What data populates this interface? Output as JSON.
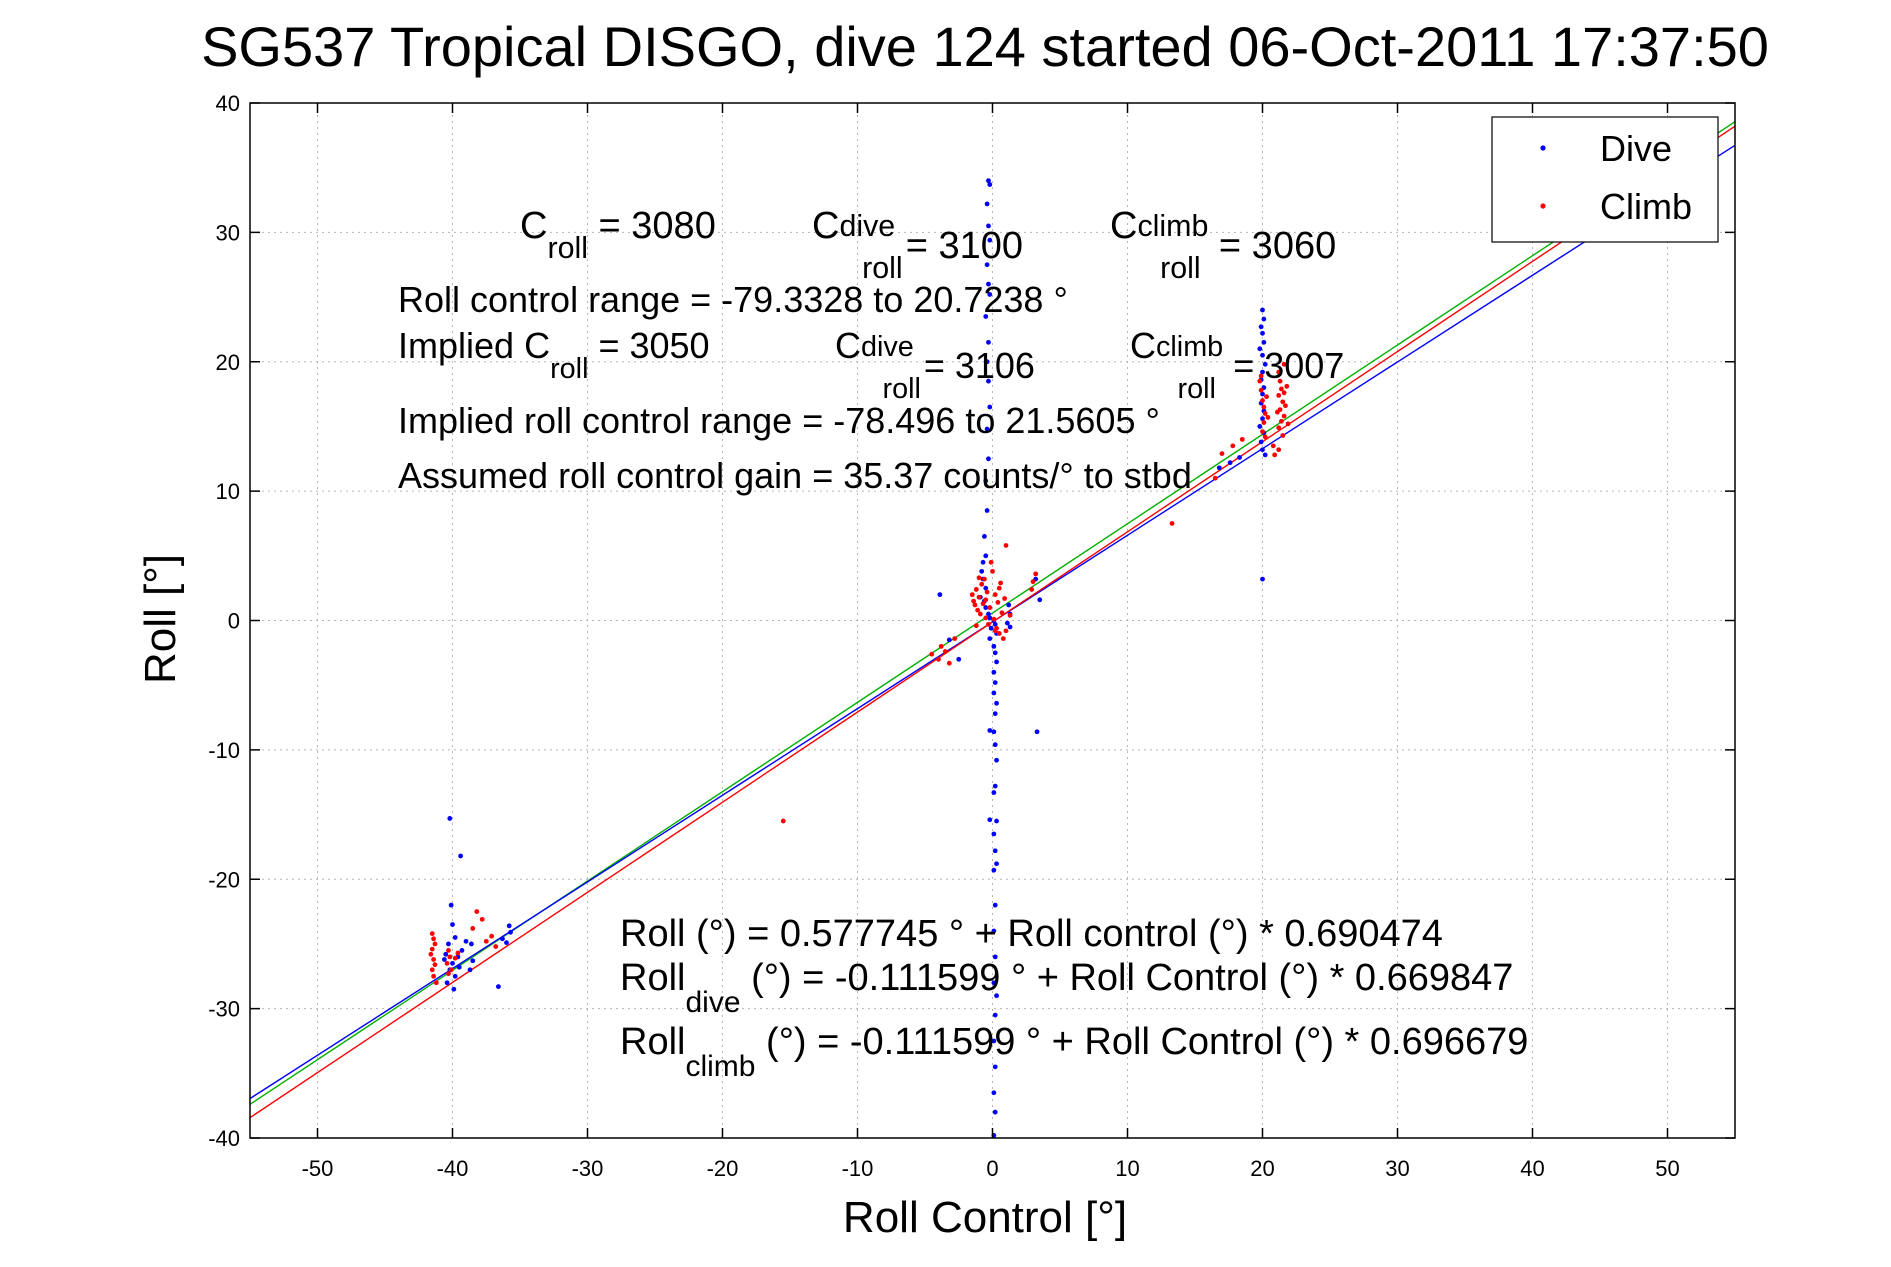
{
  "chart_data": {
    "type": "scatter",
    "title": "SG537 Tropical DISGO, dive 124 started 06-Oct-2011 17:37:50",
    "xlabel": "Roll Control [°]",
    "ylabel": "Roll [°]",
    "xlim": [
      -55,
      55
    ],
    "ylim": [
      -40,
      40
    ],
    "x_ticks": [
      -50,
      -40,
      -30,
      -20,
      -10,
      0,
      10,
      20,
      30,
      40,
      50
    ],
    "y_ticks": [
      -40,
      -30,
      -20,
      -10,
      0,
      10,
      20,
      30,
      40
    ],
    "grid": "dotted",
    "legend_position": "top-right",
    "colors": {
      "dive": "#0000ff",
      "climb": "#ff0000",
      "fit_all": "#00b000"
    },
    "series": [
      {
        "name": "Dive",
        "color": "#0000ff",
        "marker": "dot",
        "points": [
          [
            -40.2,
            -15.3
          ],
          [
            -39.4,
            -18.2
          ],
          [
            -40.1,
            -22
          ],
          [
            -40,
            -23.5
          ],
          [
            -39.8,
            -24.5
          ],
          [
            -40.3,
            -25
          ],
          [
            -40.5,
            -25.8
          ],
          [
            -39.6,
            -26
          ],
          [
            -40,
            -26.5
          ],
          [
            -40.2,
            -27
          ],
          [
            -39.8,
            -27.5
          ],
          [
            -40.4,
            -28
          ],
          [
            -39.5,
            -26.8
          ],
          [
            -39.3,
            -25.5
          ],
          [
            -39,
            -24.8
          ],
          [
            -38.6,
            -25
          ],
          [
            -38.5,
            -26.3
          ],
          [
            -38.7,
            -27
          ],
          [
            -36.6,
            -28.3
          ],
          [
            -36.3,
            -24.6
          ],
          [
            -36,
            -24.9
          ],
          [
            -35.8,
            -23.6
          ],
          [
            -35.7,
            -24.1
          ],
          [
            -40.6,
            -26.2
          ],
          [
            -39.9,
            -28.5
          ],
          [
            -0.3,
            34
          ],
          [
            -0.2,
            33.7
          ],
          [
            -0.4,
            32.2
          ],
          [
            -0.3,
            30.5
          ],
          [
            -0.2,
            29.4
          ],
          [
            -0.4,
            27.5
          ],
          [
            -0.3,
            26
          ],
          [
            -0.2,
            25.2
          ],
          [
            -0.5,
            23.5
          ],
          [
            -0.3,
            21.5
          ],
          [
            -0.4,
            20
          ],
          [
            -0.3,
            18.5
          ],
          [
            -0.2,
            16.5
          ],
          [
            -0.4,
            14.8
          ],
          [
            -0.3,
            12.5
          ],
          [
            -0.5,
            10.8
          ],
          [
            -0.4,
            8.5
          ],
          [
            -0.6,
            6.5
          ],
          [
            -0.5,
            5
          ],
          [
            -0.7,
            4.5
          ],
          [
            -0.8,
            3.8
          ],
          [
            -0.7,
            3.2
          ],
          [
            -0.5,
            2.5
          ],
          [
            -0.9,
            1.8
          ],
          [
            -0.6,
            1.5
          ],
          [
            -0.5,
            1
          ],
          [
            -0.3,
            0.5
          ],
          [
            -0.2,
            0.2
          ],
          [
            0.1,
            0
          ],
          [
            0.2,
            -0.3
          ],
          [
            -0.1,
            -0.6
          ],
          [
            0.3,
            -1
          ],
          [
            -0.2,
            -1.4
          ],
          [
            0.1,
            -2
          ],
          [
            0.2,
            -2.5
          ],
          [
            0.3,
            -3.2
          ],
          [
            0.1,
            -4
          ],
          [
            0.2,
            -4.8
          ],
          [
            0.1,
            -5.6
          ],
          [
            0.3,
            -6.4
          ],
          [
            0.2,
            -7.2
          ],
          [
            -0.2,
            -8.5
          ],
          [
            0.1,
            -8.6
          ],
          [
            0.2,
            -9.6
          ],
          [
            0.3,
            -10.8
          ],
          [
            0.2,
            -12.8
          ],
          [
            0.1,
            -13.3
          ],
          [
            0.3,
            -15.5
          ],
          [
            -0.2,
            -15.4
          ],
          [
            0.1,
            -16.5
          ],
          [
            0.2,
            -17.8
          ],
          [
            0.3,
            -18.8
          ],
          [
            0.1,
            -19.3
          ],
          [
            0.2,
            -22
          ],
          [
            0.1,
            -24
          ],
          [
            0.2,
            -26
          ],
          [
            0.1,
            -28
          ],
          [
            0.3,
            -29
          ],
          [
            0.2,
            -30.5
          ],
          [
            0.1,
            -32.5
          ],
          [
            0.2,
            -34.5
          ],
          [
            0.1,
            -36.5
          ],
          [
            0.2,
            -38
          ],
          [
            0.1,
            -39.8
          ],
          [
            1.2,
            1.2
          ],
          [
            1.3,
            0.5
          ],
          [
            1.1,
            -0.2
          ],
          [
            1.3,
            -0.5
          ],
          [
            3.3,
            -8.6
          ],
          [
            3.5,
            1.6
          ],
          [
            3.2,
            3.2
          ],
          [
            -3.9,
            2
          ],
          [
            -3.2,
            -1.5
          ],
          [
            -2.5,
            -3
          ],
          [
            20,
            24
          ],
          [
            20.1,
            23.3
          ],
          [
            19.9,
            22.7
          ],
          [
            20,
            22.2
          ],
          [
            20.1,
            21.5
          ],
          [
            19.8,
            21
          ],
          [
            20,
            20.5
          ],
          [
            20.2,
            19.8
          ],
          [
            20,
            19.2
          ],
          [
            19.9,
            18.6
          ],
          [
            20.1,
            18
          ],
          [
            20,
            17.5
          ],
          [
            19.9,
            16.8
          ],
          [
            20.1,
            16.2
          ],
          [
            20,
            15.6
          ],
          [
            19.8,
            15
          ],
          [
            20.1,
            14.5
          ],
          [
            19.9,
            13.8
          ],
          [
            20,
            13.2
          ],
          [
            20.2,
            12.8
          ],
          [
            20,
            3.2
          ],
          [
            16.8,
            11.8
          ],
          [
            17.6,
            12.2
          ],
          [
            18.3,
            12.6
          ]
        ]
      },
      {
        "name": "Climb",
        "color": "#ff0000",
        "marker": "dot",
        "points": [
          [
            -41.5,
            -24.2
          ],
          [
            -41.4,
            -24.6
          ],
          [
            -41.3,
            -25
          ],
          [
            -41.5,
            -25.4
          ],
          [
            -41.6,
            -25.8
          ],
          [
            -41.4,
            -26.2
          ],
          [
            -41.3,
            -26.6
          ],
          [
            -41.5,
            -27
          ],
          [
            -41.4,
            -27.5
          ],
          [
            -41.2,
            -28
          ],
          [
            -40.3,
            -25.5
          ],
          [
            -40.2,
            -26
          ],
          [
            -40.4,
            -26.5
          ],
          [
            -40.1,
            -27
          ],
          [
            -40.3,
            -27.3
          ],
          [
            -39.8,
            -26.1
          ],
          [
            -39.6,
            -25.7
          ],
          [
            -38.2,
            -22.5
          ],
          [
            -37.8,
            -23.1
          ],
          [
            -38.5,
            -23.8
          ],
          [
            -37.1,
            -24.4
          ],
          [
            -36.8,
            -25.2
          ],
          [
            -37.5,
            -24.8
          ],
          [
            -15.5,
            -15.5
          ],
          [
            -4.5,
            -2.6
          ],
          [
            -4,
            -3
          ],
          [
            -3.5,
            -2.4
          ],
          [
            -3.2,
            -3.3
          ],
          [
            -3.8,
            -2
          ],
          [
            -2.8,
            -1.4
          ],
          [
            -1.5,
            2
          ],
          [
            -1.4,
            1.5
          ],
          [
            -1.3,
            1.2
          ],
          [
            -1.2,
            2.4
          ],
          [
            -1.1,
            0.8
          ],
          [
            -1,
            1.8
          ],
          [
            -0.9,
            0.5
          ],
          [
            -0.8,
            2.8
          ],
          [
            -0.7,
            1.3
          ],
          [
            -0.6,
            3.2
          ],
          [
            -0.5,
            0.2
          ],
          [
            -0.4,
            2.2
          ],
          [
            -0.3,
            -0.3
          ],
          [
            -0.2,
            1
          ],
          [
            -0.1,
            4.5
          ],
          [
            0,
            3.8
          ],
          [
            0.1,
            0.1
          ],
          [
            0.2,
            2
          ],
          [
            0.3,
            -0.6
          ],
          [
            0.4,
            1.4
          ],
          [
            0.5,
            -1
          ],
          [
            0.6,
            2.9
          ],
          [
            0.7,
            0.6
          ],
          [
            0.8,
            -1.4
          ],
          [
            0.9,
            1.7
          ],
          [
            1,
            5.8
          ],
          [
            1.3,
            0.4
          ],
          [
            -1.2,
            -0.4
          ],
          [
            -1,
            3.3
          ],
          [
            0.5,
            2.5
          ],
          [
            -0.5,
            1.6
          ],
          [
            3,
            3
          ],
          [
            2.9,
            2.4
          ],
          [
            3.2,
            3.6
          ],
          [
            1,
            -0.8
          ],
          [
            0.2,
            -0.8
          ],
          [
            13.3,
            7.5
          ],
          [
            16.5,
            11
          ],
          [
            17,
            12.9
          ],
          [
            17.8,
            13.5
          ],
          [
            18.5,
            14
          ],
          [
            19.8,
            18.5
          ],
          [
            19.9,
            17.8
          ],
          [
            20,
            17
          ],
          [
            20.1,
            16.5
          ],
          [
            20.2,
            16
          ],
          [
            20.1,
            15.3
          ],
          [
            20,
            14.6
          ],
          [
            19.9,
            18.9
          ],
          [
            20.3,
            17.3
          ],
          [
            20.4,
            15.7
          ],
          [
            20.2,
            14.2
          ],
          [
            21.2,
            19.2
          ],
          [
            21.3,
            18.5
          ],
          [
            21.4,
            17.9
          ],
          [
            21.2,
            17.4
          ],
          [
            21.5,
            16.9
          ],
          [
            21.3,
            16.3
          ],
          [
            21.6,
            15.8
          ],
          [
            21.4,
            15.4
          ],
          [
            21.2,
            14.9
          ],
          [
            21.5,
            14.3
          ],
          [
            21.7,
            16.6
          ],
          [
            21.1,
            16.1
          ],
          [
            21.6,
            17.6
          ],
          [
            21.8,
            18.1
          ],
          [
            20.8,
            13.5
          ],
          [
            21.6,
            19.8
          ],
          [
            21.9,
            15.2
          ],
          [
            21.2,
            13.2
          ],
          [
            20.9,
            12.8
          ]
        ]
      }
    ],
    "fits": [
      {
        "label": "Roll",
        "color": "#00b000",
        "intercept": 0.577745,
        "slope": 0.690474
      },
      {
        "label": "Roll_dive",
        "color": "#0000ff",
        "intercept": -0.111599,
        "slope": 0.669847
      },
      {
        "label": "Roll_climb",
        "color": "#ff0000",
        "intercept": -0.111599,
        "slope": 0.696679
      }
    ],
    "legend": [
      {
        "label": "Dive",
        "color": "#0000ff"
      },
      {
        "label": "Climb",
        "color": "#ff0000"
      }
    ],
    "annotations": {
      "c_roll_line": [
        {
          "base": "C",
          "sub": "roll",
          "sup": "",
          "value": " = 3080"
        },
        {
          "base": "C",
          "sub": "roll",
          "sup": "dive",
          "value": " = 3100"
        },
        {
          "base": "C",
          "sub": "roll",
          "sup": "climb",
          "value": " = 3060"
        }
      ],
      "roll_control_range": "Roll control range = -79.3328 to 20.7238 °",
      "implied_prefix": "Implied ",
      "implied_line": [
        {
          "base": "C",
          "sub": "roll",
          "sup": "",
          "value": " = 3050"
        },
        {
          "base": "C",
          "sub": "roll",
          "sup": "dive",
          "value": " = 3106"
        },
        {
          "base": "C",
          "sub": "roll",
          "sup": "climb",
          "value": " = 3007"
        }
      ],
      "implied_range": "Implied roll control range = -78.496 to 21.5605 °",
      "gain": "Assumed roll control gain = 35.37 counts/° to stbd",
      "eq_all": "Roll (°) = 0.577745 ° + Roll control (°) * 0.690474",
      "eq_dive": {
        "base": "Roll",
        "sub": "dive",
        "rest": " (°) = -0.111599 ° + Roll Control (°) * 0.669847"
      },
      "eq_climb": {
        "base": "Roll",
        "sub": "climb",
        "rest": " (°) = -0.111599 ° + Roll Control (°) * 0.696679"
      }
    }
  }
}
